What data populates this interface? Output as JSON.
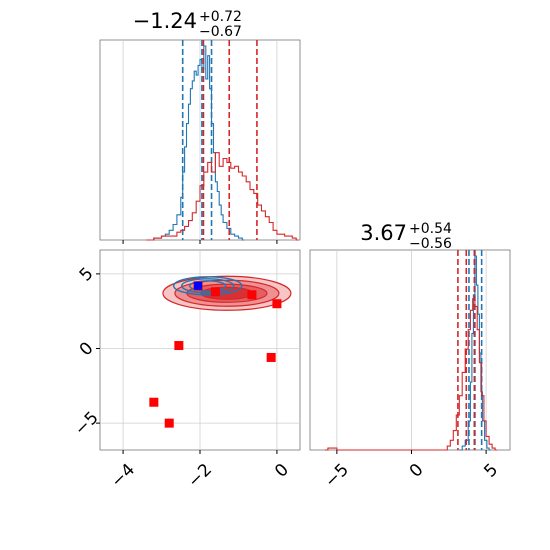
{
  "chart_data": [
    {
      "panel": "marginal-x",
      "type": "histogram",
      "title": "-1.24",
      "title_sup": "+0.72",
      "title_sub": "-0.67",
      "xlim": [
        -4.6,
        0.6
      ],
      "series": [
        {
          "color": "#1f77b4",
          "bins": [
            [
              -3.3,
              0.0
            ],
            [
              -3.2,
              0.01
            ],
            [
              -3.1,
              0.01
            ],
            [
              -3.0,
              0.02
            ],
            [
              -2.9,
              0.03
            ],
            [
              -2.8,
              0.05
            ],
            [
              -2.7,
              0.08
            ],
            [
              -2.6,
              0.13
            ],
            [
              -2.5,
              0.22
            ],
            [
              -2.45,
              0.35
            ],
            [
              -2.4,
              0.48
            ],
            [
              -2.35,
              0.6
            ],
            [
              -2.3,
              0.7
            ],
            [
              -2.25,
              0.78
            ],
            [
              -2.2,
              0.82
            ],
            [
              -2.15,
              0.87
            ],
            [
              -2.1,
              0.85
            ],
            [
              -2.05,
              0.9
            ],
            [
              -2.0,
              0.93
            ],
            [
              -1.95,
              0.88
            ],
            [
              -1.9,
              1.0
            ],
            [
              -1.85,
              0.83
            ],
            [
              -1.8,
              0.95
            ],
            [
              -1.75,
              0.78
            ],
            [
              -1.7,
              0.6
            ],
            [
              -1.65,
              0.45
            ],
            [
              -1.6,
              0.3
            ],
            [
              -1.55,
              0.25
            ],
            [
              -1.5,
              0.18
            ],
            [
              -1.45,
              0.13
            ],
            [
              -1.4,
              0.09
            ],
            [
              -1.3,
              0.06
            ],
            [
              -1.2,
              0.03
            ],
            [
              -1.1,
              0.02
            ],
            [
              -1.0,
              0.01
            ],
            [
              -0.9,
              0.0
            ]
          ],
          "quantiles": [
            -2.45,
            -1.95,
            -1.7
          ]
        },
        {
          "color": "#d62728",
          "bins": [
            [
              -3.4,
              0.0
            ],
            [
              -3.2,
              0.01
            ],
            [
              -3.0,
              0.02
            ],
            [
              -2.8,
              0.02
            ],
            [
              -2.6,
              0.04
            ],
            [
              -2.5,
              0.05
            ],
            [
              -2.4,
              0.07
            ],
            [
              -2.3,
              0.1
            ],
            [
              -2.2,
              0.14
            ],
            [
              -2.1,
              0.2
            ],
            [
              -2.0,
              0.28
            ],
            [
              -1.9,
              0.35
            ],
            [
              -1.8,
              0.4
            ],
            [
              -1.7,
              0.35
            ],
            [
              -1.6,
              0.45
            ],
            [
              -1.5,
              0.38
            ],
            [
              -1.4,
              0.42
            ],
            [
              -1.3,
              0.4
            ],
            [
              -1.2,
              0.37
            ],
            [
              -1.1,
              0.38
            ],
            [
              -1.0,
              0.35
            ],
            [
              -0.9,
              0.33
            ],
            [
              -0.8,
              0.3
            ],
            [
              -0.7,
              0.26
            ],
            [
              -0.6,
              0.24
            ],
            [
              -0.5,
              0.18
            ],
            [
              -0.4,
              0.15
            ],
            [
              -0.3,
              0.12
            ],
            [
              -0.2,
              0.09
            ],
            [
              -0.1,
              0.05
            ],
            [
              0.0,
              0.03
            ],
            [
              0.1,
              0.03
            ],
            [
              0.2,
              0.02
            ],
            [
              0.3,
              0.02
            ],
            [
              0.4,
              0.01
            ],
            [
              0.5,
              0.0
            ]
          ],
          "quantiles": [
            -1.91,
            -1.24,
            -0.52
          ]
        }
      ]
    },
    {
      "panel": "joint",
      "type": "scatter",
      "xlim": [
        -4.6,
        0.6
      ],
      "ylim": [
        -6.8,
        6.6
      ],
      "xticks": [
        "-4",
        "-2",
        "0"
      ],
      "yticks": [
        "5",
        "0",
        "-5"
      ],
      "blue_contour_center": [
        -1.8,
        4.2
      ],
      "red_contour_center": [
        -1.3,
        3.7
      ],
      "red_points": [
        [
          -2.05,
          4.2
        ],
        [
          -1.6,
          3.8
        ],
        [
          -0.65,
          3.6
        ],
        [
          0.0,
          3.0
        ],
        [
          -2.55,
          0.2
        ],
        [
          -0.15,
          -0.6
        ],
        [
          -3.2,
          -3.6
        ],
        [
          -2.8,
          -5.0
        ]
      ],
      "blue_points": [
        [
          -2.05,
          4.2
        ]
      ]
    },
    {
      "panel": "marginal-y",
      "type": "histogram",
      "title": "3.67",
      "title_sup": "+0.54",
      "title_sub": "-0.56",
      "xlim": [
        -6.8,
        6.6
      ],
      "xticks": [
        "-5",
        "0",
        "5"
      ],
      "series": [
        {
          "color": "#1f77b4",
          "bins": [
            [
              3.2,
              0.0
            ],
            [
              3.4,
              0.02
            ],
            [
              3.6,
              0.05
            ],
            [
              3.8,
              0.15
            ],
            [
              3.95,
              0.35
            ],
            [
              4.05,
              0.6
            ],
            [
              4.15,
              0.8
            ],
            [
              4.25,
              1.0
            ],
            [
              4.35,
              0.85
            ],
            [
              4.45,
              0.7
            ],
            [
              4.55,
              0.5
            ],
            [
              4.65,
              0.3
            ],
            [
              4.75,
              0.15
            ],
            [
              4.9,
              0.05
            ],
            [
              5.05,
              0.01
            ],
            [
              5.2,
              0.0
            ]
          ],
          "quantiles": [
            3.85,
            4.25,
            4.7
          ]
        },
        {
          "color": "#d62728",
          "bins": [
            [
              -5.8,
              0.0
            ],
            [
              -5.6,
              0.01
            ],
            [
              -5.0,
              0.0
            ],
            [
              2.2,
              0.0
            ],
            [
              2.4,
              0.02
            ],
            [
              2.6,
              0.05
            ],
            [
              2.8,
              0.1
            ],
            [
              3.0,
              0.18
            ],
            [
              3.2,
              0.28
            ],
            [
              3.4,
              0.4
            ],
            [
              3.6,
              0.52
            ],
            [
              3.8,
              0.62
            ],
            [
              3.95,
              0.72
            ],
            [
              4.1,
              0.78
            ],
            [
              4.25,
              0.74
            ],
            [
              4.4,
              0.62
            ],
            [
              4.55,
              0.45
            ],
            [
              4.7,
              0.28
            ],
            [
              4.85,
              0.15
            ],
            [
              5.0,
              0.07
            ],
            [
              5.2,
              0.03
            ],
            [
              5.4,
              0.01
            ],
            [
              5.6,
              0.0
            ]
          ],
          "quantiles": [
            3.11,
            3.67,
            4.21
          ]
        }
      ]
    }
  ]
}
